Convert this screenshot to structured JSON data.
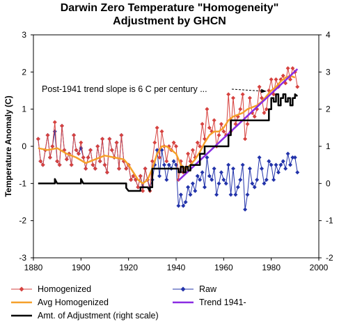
{
  "title_line1": "Darwin Zero Temperature \"Homogeneity\"",
  "title_line2": "Adjustment by GHCN",
  "annotation": "Post-1941 trend slope is 6 C per century ...",
  "colors": {
    "homogenized": "#d6423f",
    "raw": "#2233aa",
    "avg_homogenized": "#f5a02a",
    "trend": "#8a2be2",
    "adjustment": "#000000"
  },
  "chart_data": {
    "type": "line",
    "title": "Darwin Zero Temperature \"Homogeneity\" Adjustment by GHCN",
    "xlabel": "",
    "ylabel": "Temperature Anomaly (C)",
    "xlim": [
      1880,
      2000
    ],
    "ylim": [
      -3,
      3
    ],
    "y2lim": [
      -2,
      4
    ],
    "x_ticks": [
      "1880",
      "1900",
      "1920",
      "1940",
      "1960",
      "1980",
      "2000"
    ],
    "y_ticks": [
      "-3",
      "-2",
      "-1",
      "0",
      "1",
      "2",
      "3"
    ],
    "y2_ticks": [
      "-2",
      "-1",
      "0",
      "1",
      "2",
      "3",
      "4"
    ],
    "legend_position": "bottom",
    "grid": false,
    "series": [
      {
        "name": "Homogenized",
        "marker": "diamond",
        "axis": "left",
        "x": [
          1882,
          1883,
          1884,
          1885,
          1886,
          1887,
          1888,
          1889,
          1890,
          1891,
          1892,
          1893,
          1894,
          1895,
          1896,
          1897,
          1898,
          1899,
          1900,
          1901,
          1902,
          1903,
          1904,
          1905,
          1906,
          1907,
          1908,
          1909,
          1910,
          1911,
          1912,
          1913,
          1914,
          1915,
          1916,
          1917,
          1918,
          1919,
          1920,
          1921,
          1922,
          1923,
          1924,
          1925,
          1926,
          1927,
          1928,
          1929,
          1930,
          1931,
          1932,
          1933,
          1934,
          1935,
          1936,
          1937,
          1938,
          1939,
          1940,
          1941,
          1942,
          1943,
          1944,
          1945,
          1946,
          1947,
          1948,
          1949,
          1950,
          1951,
          1952,
          1953,
          1954,
          1955,
          1956,
          1957,
          1958,
          1959,
          1960,
          1961,
          1962,
          1963,
          1964,
          1965,
          1966,
          1967,
          1968,
          1969,
          1970,
          1971,
          1972,
          1973,
          1974,
          1975,
          1976,
          1977,
          1978,
          1979,
          1980,
          1981,
          1982,
          1983,
          1984,
          1985,
          1986,
          1987,
          1988,
          1989,
          1990,
          1991
        ],
        "values": [
          0.2,
          -0.4,
          -0.5,
          -0.1,
          0.3,
          -0.3,
          0.0,
          0.65,
          -0.4,
          -0.5,
          0.55,
          -0.1,
          -0.35,
          -0.2,
          -0.5,
          0.3,
          -0.1,
          -0.2,
          0.1,
          -0.3,
          -0.6,
          -0.3,
          -0.1,
          -0.5,
          -0.6,
          0.0,
          -0.4,
          0.2,
          -0.5,
          -0.7,
          0.2,
          -0.1,
          -0.3,
          0.1,
          -0.6,
          0.3,
          -0.4,
          -0.6,
          -0.5,
          -0.9,
          -0.8,
          -0.9,
          -1.1,
          -0.8,
          -1.2,
          -0.6,
          -0.9,
          -1.2,
          -0.4,
          0.1,
          0.5,
          -0.3,
          0.4,
          0.0,
          -0.4,
          0.0,
          -0.1,
          0.1,
          0.0,
          -0.9,
          -0.4,
          -0.7,
          -0.6,
          -0.2,
          -0.4,
          -0.1,
          -0.3,
          0.1,
          0.0,
          0.6,
          0.2,
          1.0,
          0.5,
          0.4,
          0.7,
          0.0,
          0.3,
          0.6,
          0.4,
          0.3,
          1.4,
          0.4,
          1.3,
          0.6,
          0.8,
          1.0,
          1.4,
          0.2,
          0.6,
          1.3,
          0.9,
          0.8,
          1.0,
          1.6,
          1.3,
          0.9,
          1.0,
          1.5,
          1.8,
          1.4,
          1.8,
          1.6,
          1.8,
          1.9,
          1.7,
          2.1,
          1.8,
          2.1,
          2.0,
          1.6
        ]
      },
      {
        "name": "Raw",
        "marker": "diamond",
        "axis": "left",
        "x": [
          1882,
          1883,
          1884,
          1885,
          1886,
          1887,
          1888,
          1889,
          1890,
          1891,
          1892,
          1893,
          1894,
          1895,
          1896,
          1897,
          1898,
          1899,
          1900,
          1901,
          1902,
          1903,
          1904,
          1905,
          1906,
          1907,
          1908,
          1909,
          1910,
          1911,
          1912,
          1913,
          1914,
          1915,
          1916,
          1917,
          1918,
          1919,
          1920,
          1921,
          1922,
          1923,
          1924,
          1925,
          1926,
          1927,
          1928,
          1929,
          1930,
          1931,
          1932,
          1933,
          1934,
          1935,
          1936,
          1937,
          1938,
          1939,
          1940,
          1941,
          1942,
          1943,
          1944,
          1945,
          1946,
          1947,
          1948,
          1949,
          1950,
          1951,
          1952,
          1953,
          1954,
          1955,
          1956,
          1957,
          1958,
          1959,
          1960,
          1961,
          1962,
          1963,
          1964,
          1965,
          1966,
          1967,
          1968,
          1969,
          1970,
          1971,
          1972,
          1973,
          1974,
          1975,
          1976,
          1977,
          1978,
          1979,
          1980,
          1981,
          1982,
          1983,
          1984,
          1985,
          1986,
          1987,
          1988,
          1989,
          1990,
          1991
        ],
        "values": [
          0.2,
          -0.4,
          -0.5,
          -0.1,
          0.3,
          -0.3,
          0.0,
          0.4,
          -0.4,
          -0.5,
          0.55,
          -0.1,
          -0.35,
          -0.2,
          -0.5,
          0.3,
          -0.1,
          -0.2,
          -0.05,
          -0.3,
          -0.6,
          -0.3,
          -0.1,
          -0.5,
          -0.6,
          0.0,
          -0.4,
          0.2,
          -0.5,
          -0.7,
          0.2,
          -0.1,
          -0.3,
          0.1,
          -0.6,
          0.3,
          -0.4,
          -0.6,
          -0.5,
          -0.9,
          -0.8,
          -0.9,
          -1.1,
          -0.8,
          -1.1,
          -0.6,
          -0.9,
          -1.1,
          -0.9,
          -0.5,
          -0.1,
          -0.8,
          -0.1,
          -0.5,
          -0.9,
          -0.5,
          -0.6,
          -0.4,
          -0.5,
          -1.6,
          -1.3,
          -1.6,
          -1.5,
          -1.1,
          -1.3,
          -1.0,
          -1.2,
          -0.8,
          -0.9,
          -0.7,
          -1.1,
          -0.3,
          -0.8,
          -0.9,
          -0.6,
          -1.3,
          -1.0,
          -0.7,
          -0.9,
          -1.0,
          -0.5,
          -1.3,
          -0.6,
          -1.3,
          -1.1,
          -0.9,
          -0.5,
          -1.7,
          -1.3,
          -0.6,
          -1.0,
          -1.1,
          -0.9,
          -0.3,
          -0.6,
          -1.0,
          -0.9,
          -0.4,
          -0.5,
          -0.9,
          -0.5,
          -0.7,
          -0.5,
          -0.4,
          -0.6,
          -0.2,
          -0.5,
          -0.3,
          -0.3,
          -0.7
        ]
      },
      {
        "name": "Avg Homogenized",
        "axis": "left",
        "x": [
          1882,
          1886,
          1890,
          1894,
          1898,
          1902,
          1906,
          1910,
          1914,
          1918,
          1920,
          1922,
          1924,
          1926,
          1928,
          1930,
          1932,
          1934,
          1936,
          1938,
          1940,
          1942,
          1944,
          1946,
          1948,
          1950,
          1952,
          1954,
          1956,
          1958,
          1960,
          1962,
          1964,
          1966,
          1968,
          1970,
          1972,
          1974,
          1976,
          1978,
          1980,
          1982,
          1984,
          1986,
          1988,
          1990
        ],
        "values": [
          -0.05,
          -0.1,
          -0.05,
          -0.2,
          -0.3,
          -0.45,
          -0.35,
          -0.25,
          -0.3,
          -0.35,
          -0.5,
          -0.7,
          -0.9,
          -1.0,
          -0.9,
          -0.6,
          -0.2,
          0.0,
          0.0,
          -0.1,
          -0.2,
          -0.5,
          -0.6,
          -0.5,
          -0.35,
          -0.15,
          0.1,
          0.3,
          0.4,
          0.4,
          0.5,
          0.7,
          0.8,
          0.85,
          0.9,
          1.0,
          1.05,
          1.1,
          1.2,
          1.35,
          1.5,
          1.6,
          1.75,
          1.85,
          1.9,
          1.85
        ]
      },
      {
        "name": "Trend 1941-",
        "axis": "left",
        "x": [
          1941,
          1991
        ],
        "values": [
          -0.92,
          2.08
        ]
      },
      {
        "name": "Amt. of Adjustment (right scale)",
        "axis": "right",
        "x": [
          1882,
          1889,
          1889,
          1890,
          1900,
          1900,
          1901,
          1919,
          1919,
          1920,
          1925,
          1925,
          1928,
          1929,
          1929,
          1930,
          1930,
          1931,
          1931,
          1941,
          1941,
          1942,
          1942,
          1943,
          1943,
          1944,
          1944,
          1945,
          1945,
          1946,
          1946,
          1947,
          1947,
          1950,
          1950,
          1952,
          1952,
          1962,
          1962,
          1963,
          1963,
          1979,
          1979,
          1980,
          1980,
          1981,
          1981,
          1982,
          1982,
          1983,
          1983,
          1984,
          1984,
          1985,
          1985,
          1986,
          1986,
          1987,
          1987,
          1988,
          1988,
          1989,
          1989,
          1990,
          1990,
          1991
        ],
        "values": [
          0.0,
          0.0,
          0.12,
          0.0,
          0.0,
          0.12,
          0.0,
          0.0,
          -0.12,
          -0.2,
          -0.2,
          -0.1,
          -0.1,
          -0.2,
          -0.1,
          -0.1,
          0.4,
          0.4,
          0.4,
          0.4,
          0.3,
          0.3,
          0.45,
          0.45,
          0.3,
          0.3,
          0.45,
          0.45,
          0.35,
          0.35,
          0.5,
          0.5,
          0.5,
          0.5,
          0.8,
          0.8,
          1.0,
          1.0,
          1.3,
          1.3,
          1.7,
          1.7,
          2.0,
          2.0,
          2.3,
          2.3,
          2.2,
          2.2,
          2.4,
          2.4,
          2.1,
          2.1,
          2.3,
          2.3,
          2.4,
          2.4,
          2.2,
          2.2,
          2.3,
          2.3,
          2.1,
          2.1,
          2.3,
          2.3,
          2.4,
          2.35
        ]
      }
    ]
  }
}
